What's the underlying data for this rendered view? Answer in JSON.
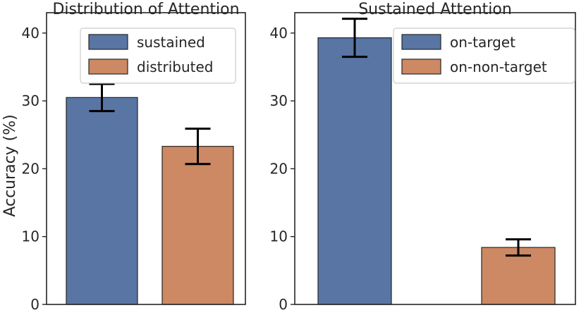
{
  "chart_data": [
    {
      "type": "bar",
      "title": "Distribution of Attention",
      "ylabel": "Accuracy (%)",
      "xlabel": "",
      "ylim": [
        0,
        43
      ],
      "yticks": [
        0,
        10,
        20,
        30,
        40
      ],
      "grid": false,
      "legend_position": "top-right",
      "categories": [
        "sustained",
        "distributed"
      ],
      "values": [
        30.5,
        23.3
      ],
      "errors": [
        2.0,
        2.6
      ],
      "colors": [
        "#5975a4",
        "#cc8963"
      ]
    },
    {
      "type": "bar",
      "title": "Sustained Attention",
      "ylabel": "",
      "xlabel": "",
      "ylim": [
        0,
        43
      ],
      "yticks": [
        0,
        10,
        20,
        30,
        40
      ],
      "grid": false,
      "legend_position": "top-right",
      "categories": [
        "on-target",
        "on-non-target"
      ],
      "values": [
        39.3,
        8.4
      ],
      "errors": [
        2.8,
        1.2
      ],
      "colors": [
        "#5975a4",
        "#cc8963"
      ]
    }
  ]
}
